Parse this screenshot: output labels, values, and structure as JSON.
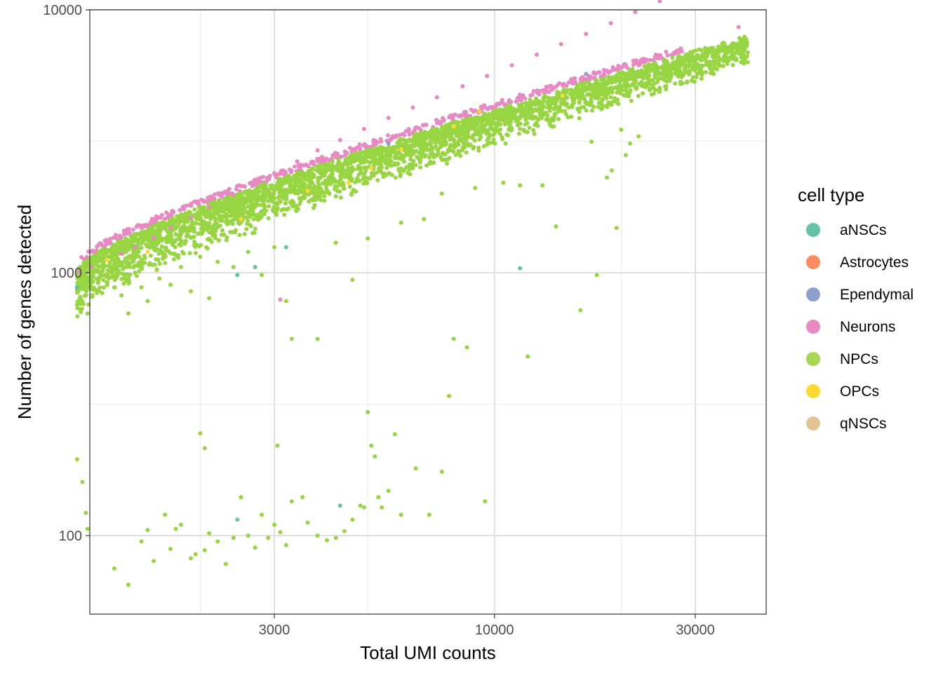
{
  "chart_data": {
    "type": "scatter",
    "xlabel": "Total UMI counts",
    "ylabel": "Number of genes detected",
    "x_scale": "log10",
    "y_scale": "log10",
    "xlim": [
      1000,
      45000
    ],
    "ylim": [
      55,
      10000
    ],
    "x_ticks": [
      3000,
      10000,
      30000
    ],
    "x_tick_labels": [
      "3000",
      "10000",
      "30000"
    ],
    "y_ticks": [
      100,
      1000,
      10000
    ],
    "y_tick_labels": [
      "100",
      "1000",
      "10000"
    ],
    "x_minor_gridlines": [
      2000,
      5000,
      20000
    ],
    "y_minor_gridlines": [
      316,
      3162
    ],
    "grid": true,
    "legend": {
      "title": "cell type",
      "position": "right",
      "entries": [
        {
          "name": "aNSCs",
          "color": "#66C2A5"
        },
        {
          "name": "Astrocytes",
          "color": "#FC8D62"
        },
        {
          "name": "Ependymal",
          "color": "#8DA0CB"
        },
        {
          "name": "Neurons",
          "color": "#E78AC3"
        },
        {
          "name": "NPCs",
          "color": "#A6D854"
        },
        {
          "name": "OPCs",
          "color": "#FFD92F"
        },
        {
          "name": "qNSCs",
          "color": "#E5C494"
        }
      ]
    },
    "series": [
      {
        "name": "NPCs",
        "color": "#98D543",
        "points": [
          [
            1020,
            980
          ],
          [
            1040,
            760
          ],
          [
            1080,
            700
          ],
          [
            1100,
            950
          ],
          [
            1150,
            850
          ],
          [
            1200,
            920
          ],
          [
            1250,
            880
          ],
          [
            1300,
            820
          ],
          [
            1350,
            700
          ],
          [
            1400,
            1000
          ],
          [
            1450,
            880
          ],
          [
            1500,
            780
          ],
          [
            1600,
            950
          ],
          [
            1700,
            900
          ],
          [
            1800,
            1050
          ],
          [
            1900,
            850
          ],
          [
            2000,
            1150
          ],
          [
            2100,
            800
          ],
          [
            2200,
            1100
          ],
          [
            2400,
            1050
          ],
          [
            2600,
            1200
          ],
          [
            2800,
            980
          ],
          [
            3000,
            1250
          ],
          [
            3200,
            780
          ],
          [
            3300,
            560
          ],
          [
            3800,
            560
          ],
          [
            4200,
            1300
          ],
          [
            4600,
            940
          ],
          [
            5000,
            1350
          ],
          [
            6000,
            1550
          ],
          [
            6800,
            1600
          ],
          [
            7500,
            2000
          ],
          [
            7800,
            340
          ],
          [
            8000,
            560
          ],
          [
            8600,
            520
          ],
          [
            9000,
            2100
          ],
          [
            10500,
            2200
          ],
          [
            11500,
            2150
          ],
          [
            12000,
            480
          ],
          [
            13000,
            2150
          ],
          [
            14000,
            1500
          ],
          [
            16000,
            720
          ],
          [
            17000,
            3150
          ],
          [
            17500,
            980
          ],
          [
            18500,
            2300
          ],
          [
            19000,
            2450
          ],
          [
            19500,
            1480
          ],
          [
            20000,
            3500
          ],
          [
            22000,
            3300
          ],
          [
            21000,
            3100
          ],
          [
            20500,
            2800
          ],
          [
            1020,
            195
          ],
          [
            1050,
            160
          ],
          [
            1070,
            122
          ],
          [
            1080,
            106
          ],
          [
            1250,
            75
          ],
          [
            1350,
            65
          ],
          [
            1450,
            95
          ],
          [
            1500,
            105
          ],
          [
            1550,
            80
          ],
          [
            1650,
            120
          ],
          [
            1700,
            89
          ],
          [
            1750,
            106
          ],
          [
            1800,
            110
          ],
          [
            1900,
            82
          ],
          [
            1950,
            85
          ],
          [
            2000,
            245
          ],
          [
            2050,
            215
          ],
          [
            2050,
            88
          ],
          [
            2100,
            102
          ],
          [
            2200,
            95
          ],
          [
            2300,
            78
          ],
          [
            2400,
            98
          ],
          [
            2500,
            140
          ],
          [
            2600,
            100
          ],
          [
            2700,
            90
          ],
          [
            2800,
            120
          ],
          [
            2900,
            98
          ],
          [
            3000,
            110
          ],
          [
            3050,
            220
          ],
          [
            3100,
            103
          ],
          [
            3200,
            92
          ],
          [
            3300,
            135
          ],
          [
            3500,
            140
          ],
          [
            3600,
            112
          ],
          [
            3800,
            100
          ],
          [
            4000,
            96
          ],
          [
            4200,
            98
          ],
          [
            4400,
            104
          ],
          [
            4600,
            115
          ],
          [
            4800,
            130
          ],
          [
            4900,
            128
          ],
          [
            5000,
            295
          ],
          [
            5100,
            220
          ],
          [
            5200,
            200
          ],
          [
            5300,
            140
          ],
          [
            5400,
            128
          ],
          [
            5600,
            148
          ],
          [
            5800,
            243
          ],
          [
            6500,
            180
          ],
          [
            7000,
            120
          ],
          [
            7500,
            175
          ],
          [
            9500,
            135
          ],
          [
            6000,
            120
          ]
        ]
      },
      {
        "name": "Neurons",
        "color": "#E78AC3",
        "points": [
          [
            1030,
            1010
          ],
          [
            1100,
            1050
          ],
          [
            1200,
            1120
          ],
          [
            1300,
            1180
          ],
          [
            1400,
            1250
          ],
          [
            1550,
            1360
          ],
          [
            1700,
            1480
          ],
          [
            1900,
            1620
          ],
          [
            2100,
            1780
          ],
          [
            2400,
            1980
          ],
          [
            2700,
            2170
          ],
          [
            3000,
            2380
          ],
          [
            3400,
            2650
          ],
          [
            3800,
            2920
          ],
          [
            4300,
            3200
          ],
          [
            4900,
            3520
          ],
          [
            5600,
            3880
          ],
          [
            6400,
            4250
          ],
          [
            7300,
            4650
          ],
          [
            8400,
            5120
          ],
          [
            9600,
            5600
          ],
          [
            11000,
            6150
          ],
          [
            12600,
            6750
          ],
          [
            14400,
            7400
          ],
          [
            16500,
            8100
          ],
          [
            18900,
            8900
          ],
          [
            21600,
            9800
          ],
          [
            24700,
            10800
          ],
          [
            28300,
            11900
          ],
          [
            3100,
            790
          ],
          [
            38000,
            8600
          ]
        ]
      },
      {
        "name": "OPCs",
        "color": "#FFD92F",
        "points": [
          [
            1200,
            1120
          ],
          [
            1500,
            1200
          ],
          [
            2500,
            1600
          ],
          [
            3600,
            2050
          ],
          [
            4500,
            2200
          ],
          [
            5100,
            2500
          ],
          [
            6000,
            2950
          ],
          [
            8000,
            3600
          ],
          [
            9200,
            4100
          ],
          [
            14500,
            4700
          ]
        ]
      },
      {
        "name": "aNSCs",
        "color": "#66C2A5",
        "points": [
          [
            1020,
            880
          ],
          [
            2450,
            980
          ],
          [
            2700,
            1050
          ],
          [
            3200,
            1250
          ],
          [
            11500,
            1040
          ],
          [
            4300,
            130
          ],
          [
            2450,
            115
          ]
        ]
      },
      {
        "name": "Ependymal",
        "color": "#8DA0CB",
        "points": [
          [
            5600,
            3100
          ],
          [
            16500,
            5700
          ]
        ]
      }
    ]
  }
}
